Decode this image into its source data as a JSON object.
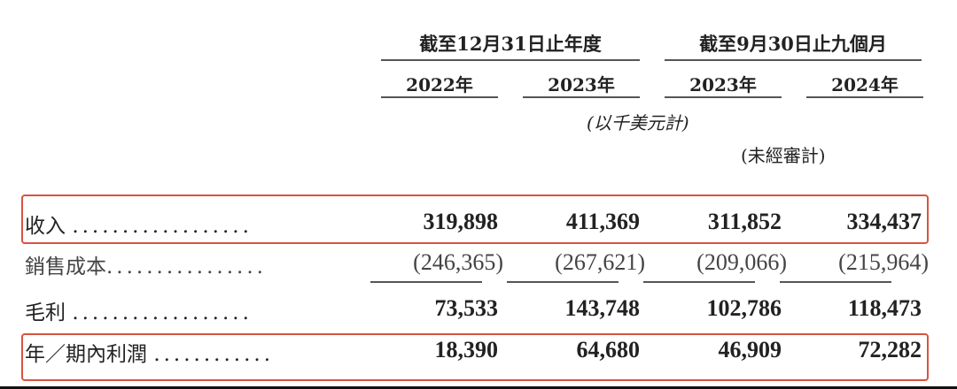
{
  "header": {
    "group1": "截至12月31日止年度",
    "group2": "截至9月30日止九個月",
    "years": [
      "2022年",
      "2023年",
      "2023年",
      "2024年"
    ],
    "unit_note": "(以千美元計)",
    "unaudited_note": "(未經審計)"
  },
  "rows": [
    {
      "label": "收入",
      "dots": "..................",
      "values": [
        "319,898",
        "411,369",
        "311,852",
        "334,437"
      ],
      "highlighted": true
    },
    {
      "label": "銷售成本",
      "dots": "................",
      "values": [
        "(246,365)",
        "(267,621)",
        "(209,066)",
        "(215,964)"
      ],
      "highlighted": false
    },
    {
      "label": "毛利",
      "dots": "..................",
      "values": [
        "73,533",
        "143,748",
        "102,786",
        "118,473"
      ],
      "highlighted": false
    },
    {
      "label": "年／期內利潤",
      "dots": "............",
      "values": [
        "18,390",
        "64,680",
        "46,909",
        "72,282"
      ],
      "highlighted": true
    }
  ],
  "colors": {
    "highlight_border": "#d9533f",
    "text": "#222222"
  }
}
